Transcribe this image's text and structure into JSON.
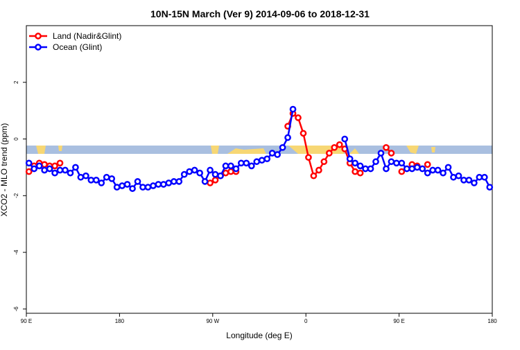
{
  "chart_data": {
    "type": "line",
    "title": "10N-15N March (Ver 9)   2014-09-06 to 2018-12-31",
    "xlabel": "Longitude (deg E)",
    "ylabel": "XCO2 - MLO trend (ppm)",
    "xlim": [
      90,
      540
    ],
    "ylim": [
      -6.15,
      4
    ],
    "xticks": [
      {
        "value": 90,
        "label": "90 E"
      },
      180,
      {
        "value": 270,
        "label": "90 W"
      },
      {
        "value": 360,
        "label": "0"
      },
      {
        "value": 450,
        "label": "90 E"
      },
      {
        "value": 540,
        "label": "180"
      }
    ],
    "yticks": [
      -6,
      -4,
      -2,
      0,
      2
    ],
    "legend": "top-left",
    "x": [
      92.5,
      97.5,
      102.5,
      107.5,
      112.5,
      117.5,
      122.5,
      127.5,
      132.5,
      137.5,
      142.5,
      147.5,
      152.5,
      157.5,
      162.5,
      167.5,
      172.5,
      177.5,
      182.5,
      187.5,
      192.5,
      197.5,
      202.5,
      207.5,
      212.5,
      217.5,
      222.5,
      227.5,
      232.5,
      237.5,
      242.5,
      247.5,
      252.5,
      257.5,
      262.5,
      267.5,
      272.5,
      277.5,
      282.5,
      287.5,
      292.5,
      297.5,
      302.5,
      307.5,
      312.5,
      317.5,
      322.5,
      327.5,
      332.5,
      337.5,
      342.5,
      347.5,
      352.5,
      357.5,
      362.5,
      367.5,
      372.5,
      377.5,
      382.5,
      387.5,
      392.5,
      397.5,
      402.5,
      407.5,
      412.5,
      417.5,
      422.5,
      427.5,
      432.5,
      437.5,
      442.5,
      447.5,
      452.5,
      457.5,
      462.5,
      467.5,
      472.5,
      477.5,
      482.5,
      487.5,
      492.5,
      497.5,
      502.5,
      507.5,
      512.5,
      517.5,
      522.5,
      527.5,
      532.5,
      537.5
    ],
    "series": [
      {
        "name": "Land (Nadir&Glint)",
        "color": "#ff0000",
        "values": [
          -1.15,
          -0.95,
          -0.85,
          -0.9,
          -0.95,
          -0.95,
          -0.85,
          null,
          null,
          null,
          null,
          null,
          null,
          null,
          null,
          null,
          null,
          null,
          null,
          null,
          null,
          null,
          null,
          null,
          null,
          null,
          null,
          null,
          null,
          null,
          null,
          null,
          null,
          null,
          null,
          -1.55,
          -1.45,
          -1.3,
          -1.2,
          -1.15,
          -1.15,
          null,
          null,
          null,
          null,
          null,
          null,
          null,
          null,
          null,
          0.45,
          0.9,
          0.75,
          0.2,
          -0.65,
          -1.3,
          -1.1,
          -0.8,
          -0.5,
          -0.3,
          -0.2,
          -0.35,
          -0.85,
          -1.15,
          -1.2,
          null,
          null,
          null,
          null,
          -0.3,
          -0.5,
          null,
          -1.15,
          null,
          -0.9,
          -0.95,
          null,
          -0.9,
          null,
          null,
          null,
          null,
          null,
          null,
          null,
          null,
          null,
          null,
          null,
          null
        ]
      },
      {
        "name": "Ocean (Glint)",
        "color": "#0000ff",
        "values": [
          -0.85,
          -1.05,
          -0.95,
          -1.1,
          -1.05,
          -1.2,
          -1.1,
          -1.1,
          -1.2,
          -1.0,
          -1.35,
          -1.3,
          -1.45,
          -1.45,
          -1.55,
          -1.35,
          -1.4,
          -1.7,
          -1.65,
          -1.6,
          -1.75,
          -1.5,
          -1.7,
          -1.7,
          -1.65,
          -1.6,
          -1.6,
          -1.55,
          -1.5,
          -1.5,
          -1.25,
          -1.15,
          -1.1,
          -1.2,
          -1.5,
          -1.1,
          -1.25,
          -1.3,
          -0.95,
          -0.95,
          -1.05,
          -0.85,
          -0.85,
          -0.95,
          -0.8,
          -0.75,
          -0.7,
          -0.5,
          -0.55,
          -0.3,
          0.05,
          1.05,
          null,
          null,
          null,
          null,
          null,
          null,
          null,
          null,
          null,
          0.0,
          -0.7,
          -0.85,
          -0.95,
          -1.05,
          -1.05,
          -0.8,
          -0.5,
          -1.05,
          -0.8,
          -0.85,
          -0.85,
          -1.05,
          -1.05,
          -1.0,
          -1.05,
          -1.2,
          -1.1,
          -1.1,
          -1.2,
          -1.0,
          -1.35,
          -1.3,
          -1.45,
          -1.45,
          -1.55,
          -1.35,
          -1.35,
          -1.7
        ]
      }
    ]
  }
}
